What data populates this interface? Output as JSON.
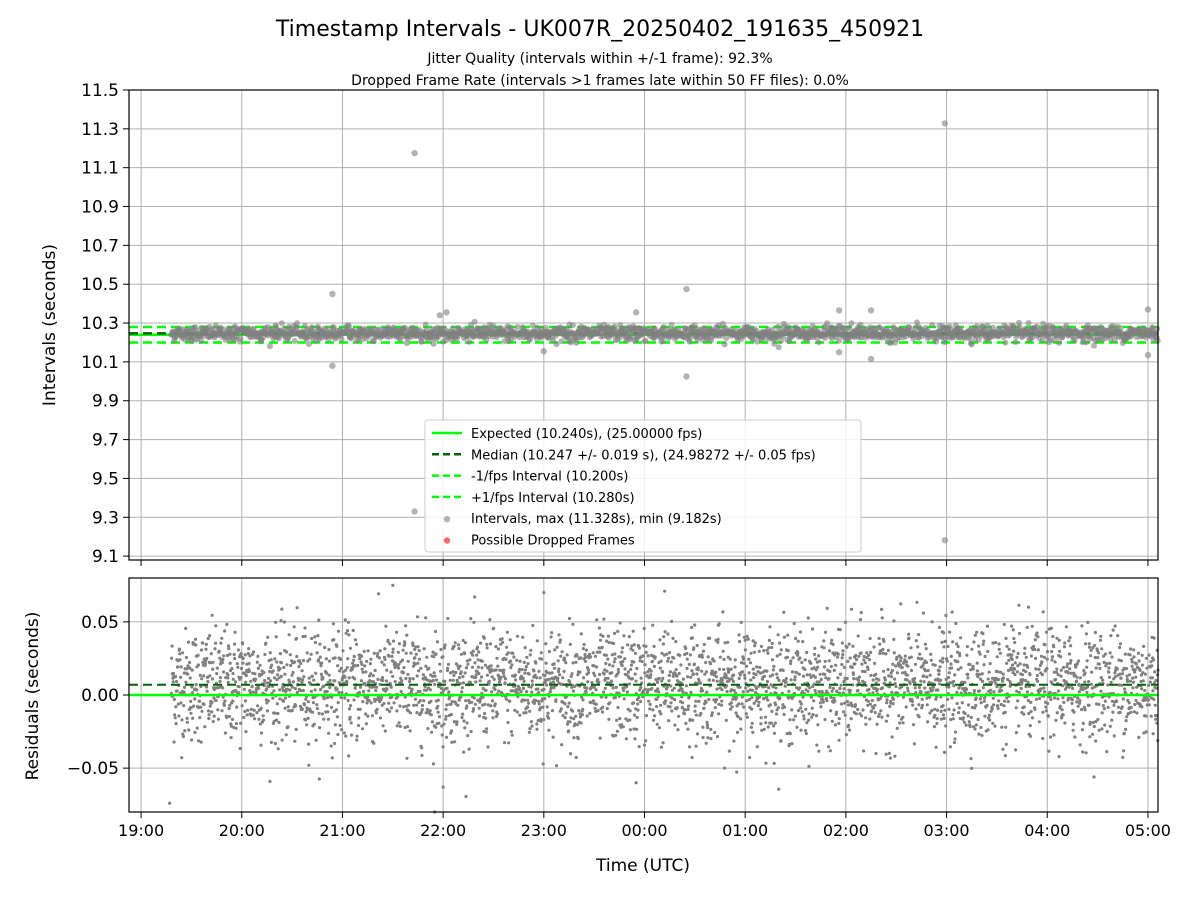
{
  "figure": {
    "title": "Timestamp Intervals - UK007R_20250402_191635_450921",
    "subtitle_1": "Jitter Quality (intervals within +/-1 frame): 92.3%",
    "subtitle_2": "Dropped Frame Rate (intervals >1 frames late within 50 FF files): 0.0%",
    "xlabel": "Time (UTC)"
  },
  "colors": {
    "expected": "#00ff00",
    "median": "#006400",
    "interval_band": "#00ff00",
    "points": "#808080",
    "dropped": "#ff0000",
    "grid": "#b0b0b0"
  },
  "chart_data": [
    {
      "type": "scatter",
      "panel": "intervals",
      "ylabel": "Intervals (seconds)",
      "ylim": [
        9.08,
        11.5
      ],
      "yticks": [
        "9.1",
        "9.3",
        "9.5",
        "9.7",
        "9.9",
        "10.1",
        "10.3",
        "10.5",
        "10.7",
        "10.9",
        "11.1",
        "11.3",
        "11.5"
      ],
      "xlim_hours": [
        -0.12,
        10.1
      ],
      "x_start_time": "19:18",
      "x_end_time": "05:06",
      "grid": true,
      "legend_position": "lower center",
      "lines": [
        {
          "name": "Expected (10.240s), (25.00000 fps)",
          "y": 10.24,
          "style": "solid",
          "color": "#00ff00"
        },
        {
          "name": "Median (10.247 +/- 0.019 s), (24.98272 +/- 0.05 fps)",
          "y": 10.247,
          "style": "dashed",
          "color": "#006400"
        },
        {
          "name": "-1/fps Interval (10.200s)",
          "y": 10.2,
          "style": "dashed",
          "color": "#00ff00"
        },
        {
          "name": "+1/fps Interval (10.280s)",
          "y": 10.28,
          "style": "dashed",
          "color": "#00ff00"
        }
      ],
      "series": [
        {
          "name": "Intervals, max (11.328s), min (9.182s)",
          "color": "#808080",
          "marker": "circle"
        },
        {
          "name": "Possible Dropped Frames",
          "color": "#ff0000",
          "marker": "circle",
          "values": []
        }
      ],
      "outliers": [
        {
          "time": "21:43",
          "y": 11.175
        },
        {
          "time": "02:59",
          "y": 11.328
        },
        {
          "time": "20:54",
          "y": 10.45
        },
        {
          "time": "00:25",
          "y": 10.475
        },
        {
          "time": "21:58",
          "y": 10.34
        },
        {
          "time": "22:02",
          "y": 10.355
        },
        {
          "time": "23:55",
          "y": 10.355
        },
        {
          "time": "01:56",
          "y": 10.365
        },
        {
          "time": "02:15",
          "y": 10.365
        },
        {
          "time": "05:00",
          "y": 10.37
        },
        {
          "time": "20:54",
          "y": 10.08
        },
        {
          "time": "00:25",
          "y": 10.025
        },
        {
          "time": "02:15",
          "y": 10.115
        },
        {
          "time": "01:56",
          "y": 10.15
        },
        {
          "time": "23:00",
          "y": 10.155
        },
        {
          "time": "05:00",
          "y": 10.135
        },
        {
          "time": "21:43",
          "y": 9.33
        },
        {
          "time": "02:59",
          "y": 9.182
        }
      ]
    },
    {
      "type": "scatter",
      "panel": "residuals",
      "ylabel": "Residuals (seconds)",
      "ylim": [
        -0.08,
        0.08
      ],
      "yticks": [
        "−0.05",
        "0.00",
        "0.05"
      ],
      "xticks": [
        "19:00",
        "20:00",
        "21:00",
        "22:00",
        "23:00",
        "00:00",
        "01:00",
        "02:00",
        "03:00",
        "04:00",
        "05:00"
      ],
      "grid": true,
      "zero_line": 0.0,
      "median_line": 0.007,
      "residual_std": 0.019,
      "point_count": 3500,
      "example_points": [
        {
          "time": "21:30",
          "y": 0.075
        },
        {
          "time": "23:00",
          "y": 0.07
        },
        {
          "time": "00:12",
          "y": 0.071
        },
        {
          "time": "19:17",
          "y": -0.074
        },
        {
          "time": "21:55",
          "y": -0.08
        },
        {
          "time": "22:00",
          "y": -0.063
        },
        {
          "time": "23:55",
          "y": -0.06
        }
      ]
    }
  ]
}
